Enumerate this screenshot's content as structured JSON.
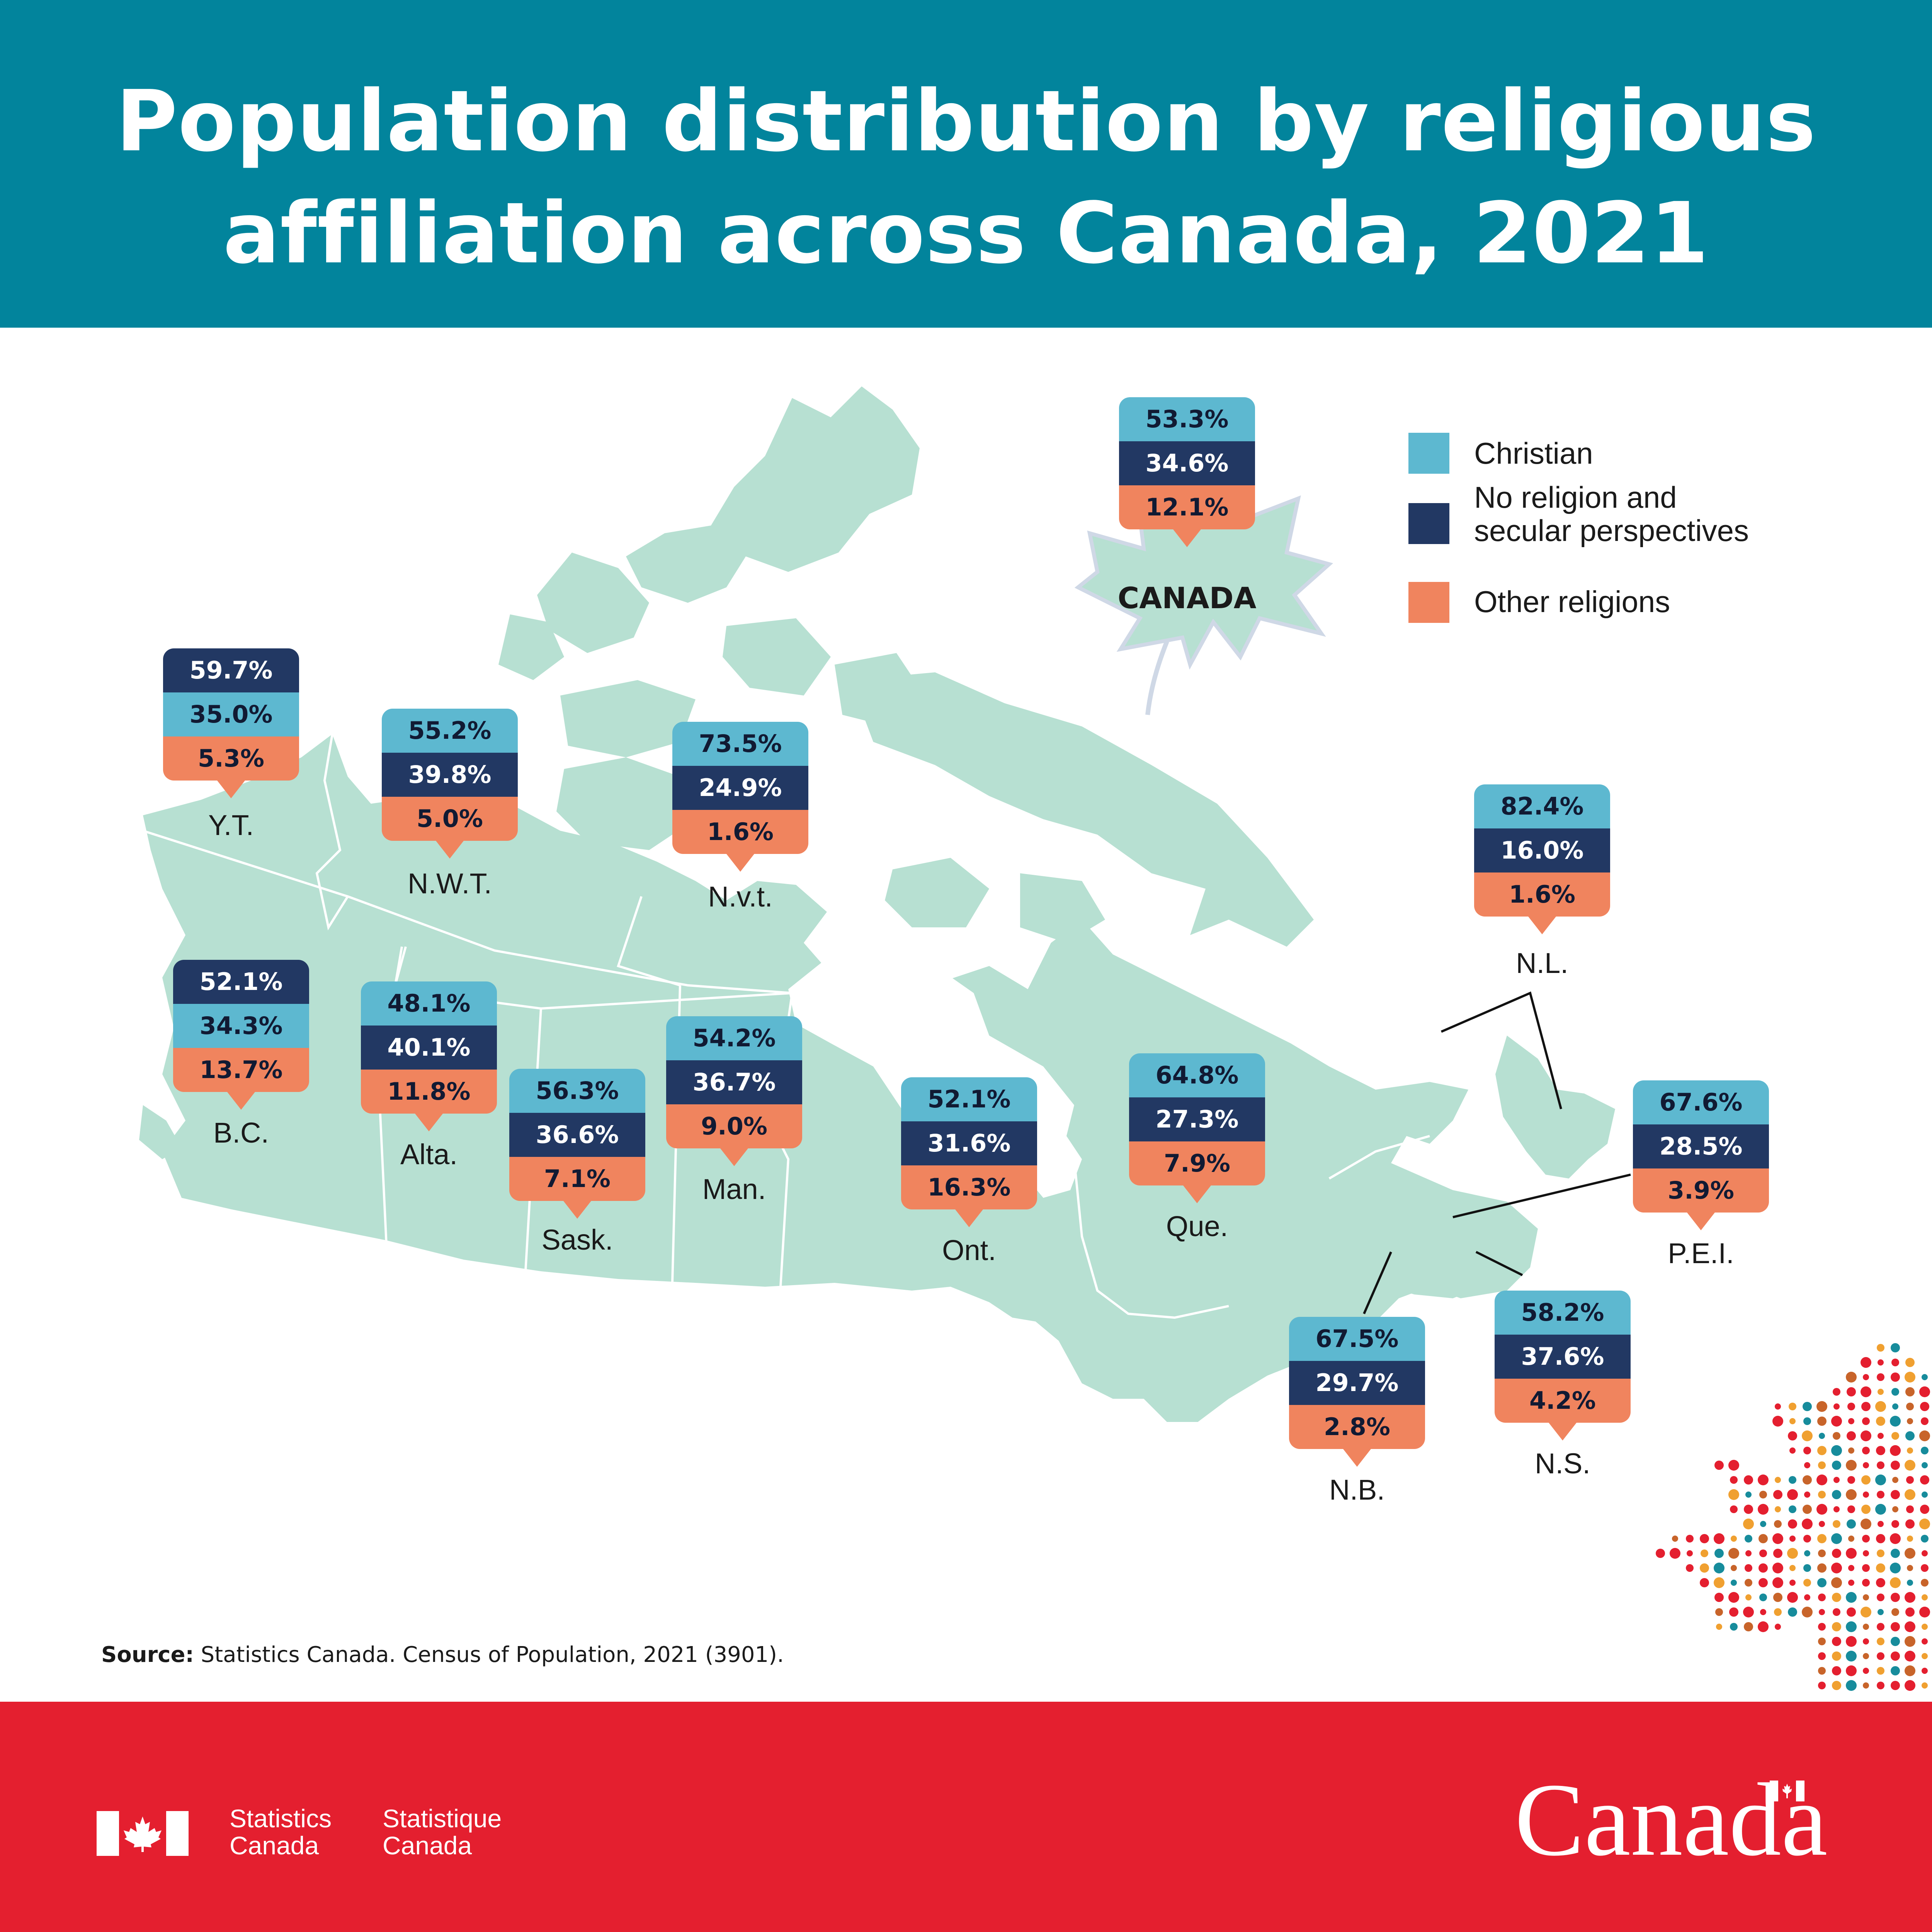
{
  "title_lines": [
    "Population distribution by religious",
    "affiliation across Canada, 2021"
  ],
  "colors": {
    "header": "#02849c",
    "map_land": "#b7e0d2",
    "christian": "#5db8d0",
    "no_religion": "#223863",
    "other_religions": "#f0845e",
    "footer": "#e41f2f"
  },
  "legend": {
    "christian": "Christian",
    "no_religion_line1": "No religion and",
    "no_religion_line2": "secular perspectives",
    "other": "Other religions"
  },
  "regions": [
    {
      "id": "canada",
      "label": "CANADA",
      "christian": "53.3%",
      "no_religion": "34.6%",
      "other": "12.1%",
      "order": [
        "christian",
        "no_religion",
        "other"
      ]
    },
    {
      "id": "yt",
      "label": "Y.T.",
      "christian": "35.0%",
      "no_religion": "59.7%",
      "other": "5.3%",
      "order": [
        "no_religion",
        "christian",
        "other"
      ]
    },
    {
      "id": "nwt",
      "label": "N.W.T.",
      "christian": "55.2%",
      "no_religion": "39.8%",
      "other": "5.0%",
      "order": [
        "christian",
        "no_religion",
        "other"
      ]
    },
    {
      "id": "nvt",
      "label": "N.v.t.",
      "christian": "73.5%",
      "no_religion": "24.9%",
      "other": "1.6%",
      "order": [
        "christian",
        "no_religion",
        "other"
      ]
    },
    {
      "id": "nl",
      "label": "N.L.",
      "christian": "82.4%",
      "no_religion": "16.0%",
      "other": "1.6%",
      "order": [
        "christian",
        "no_religion",
        "other"
      ]
    },
    {
      "id": "bc",
      "label": "B.C.",
      "christian": "34.3%",
      "no_religion": "52.1%",
      "other": "13.7%",
      "order": [
        "no_religion",
        "christian",
        "other"
      ]
    },
    {
      "id": "alta",
      "label": "Alta.",
      "christian": "48.1%",
      "no_religion": "40.1%",
      "other": "11.8%",
      "order": [
        "christian",
        "no_religion",
        "other"
      ]
    },
    {
      "id": "sask",
      "label": "Sask.",
      "christian": "56.3%",
      "no_religion": "36.6%",
      "other": "7.1%",
      "order": [
        "christian",
        "no_religion",
        "other"
      ]
    },
    {
      "id": "man",
      "label": "Man.",
      "christian": "54.2%",
      "no_religion": "36.7%",
      "other": "9.0%",
      "order": [
        "christian",
        "no_religion",
        "other"
      ]
    },
    {
      "id": "ont",
      "label": "Ont.",
      "christian": "52.1%",
      "no_religion": "31.6%",
      "other": "16.3%",
      "order": [
        "christian",
        "no_religion",
        "other"
      ]
    },
    {
      "id": "que",
      "label": "Que.",
      "christian": "64.8%",
      "no_religion": "27.3%",
      "other": "7.9%",
      "order": [
        "christian",
        "no_religion",
        "other"
      ]
    },
    {
      "id": "pei",
      "label": "P.E.I.",
      "christian": "67.6%",
      "no_religion": "28.5%",
      "other": "3.9%",
      "order": [
        "christian",
        "no_religion",
        "other"
      ]
    },
    {
      "id": "ns",
      "label": "N.S.",
      "christian": "58.2%",
      "no_religion": "37.6%",
      "other": "4.2%",
      "order": [
        "christian",
        "no_religion",
        "other"
      ]
    },
    {
      "id": "nb",
      "label": "N.B.",
      "christian": "67.5%",
      "no_religion": "29.7%",
      "other": "2.8%",
      "order": [
        "christian",
        "no_religion",
        "other"
      ]
    }
  ],
  "source": {
    "label": "Source:",
    "text": " Statistics Canada. Census of Population, 2021 (3901)."
  },
  "footer": {
    "agency_en_1": "Statistics",
    "agency_en_2": "Canada",
    "agency_fr_1": "Statistique",
    "agency_fr_2": "Canada",
    "wordmark": "Canada"
  }
}
